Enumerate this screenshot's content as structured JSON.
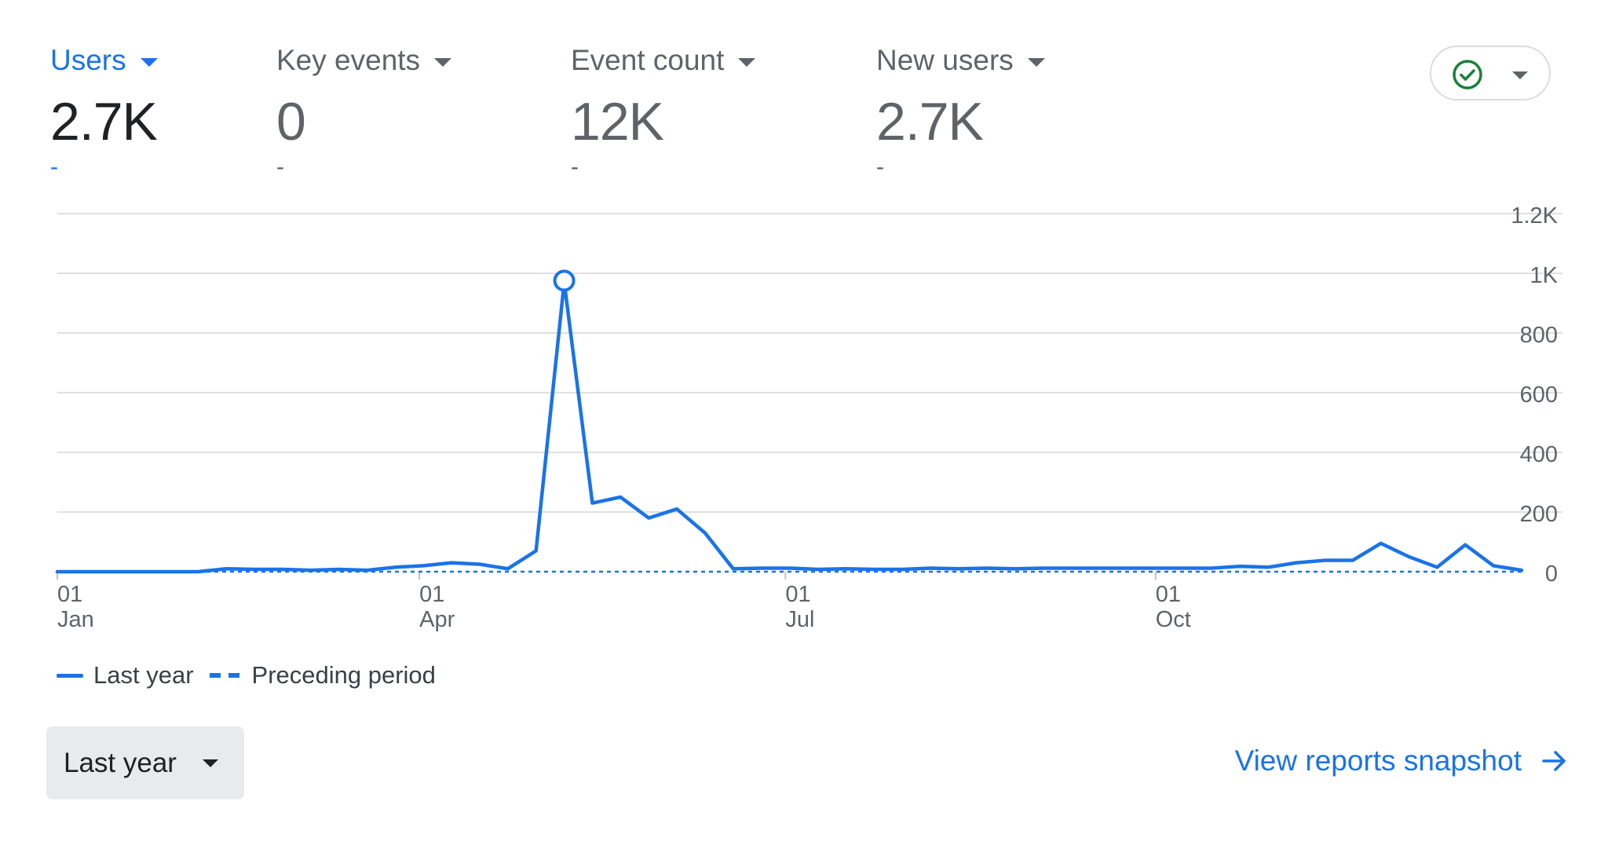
{
  "metrics": [
    {
      "label": "Users",
      "value": "2.7K",
      "delta": "-",
      "active": true
    },
    {
      "label": "Key events",
      "value": "0",
      "delta": "-",
      "active": false
    },
    {
      "label": "Event count",
      "value": "12K",
      "delta": "-",
      "active": false
    },
    {
      "label": "New users",
      "value": "2.7K",
      "delta": "-",
      "active": false
    }
  ],
  "status_button": {
    "icon": "check-circle-icon",
    "icon_color": "#188038",
    "caret": "chevron-down-icon"
  },
  "colors": {
    "accent": "#1a73e8",
    "text": "#3c4043",
    "muted": "#5f6368",
    "grid": "#e0e0e0"
  },
  "chart_data": {
    "type": "line",
    "x_tick_labels": [
      {
        "day": "01",
        "month": "Jan"
      },
      {
        "day": "01",
        "month": "Apr"
      },
      {
        "day": "01",
        "month": "Jul"
      },
      {
        "day": "01",
        "month": "Oct"
      }
    ],
    "y_tick_labels": [
      "0",
      "200",
      "400",
      "600",
      "800",
      "1K",
      "1.2K"
    ],
    "ylim": [
      0,
      1200
    ],
    "y_ticks": [
      0,
      200,
      400,
      600,
      800,
      1000,
      1200
    ],
    "xlim": [
      0,
      364
    ],
    "x_tick_days": [
      0,
      90,
      181,
      273
    ],
    "series": [
      {
        "name": "Last year",
        "style": "solid",
        "x": [
          0,
          7,
          14,
          21,
          28,
          35,
          42,
          49,
          56,
          63,
          70,
          77,
          84,
          91,
          98,
          105,
          112,
          119,
          126,
          133,
          140,
          147,
          154,
          161,
          168,
          175,
          182,
          189,
          196,
          203,
          210,
          217,
          224,
          231,
          238,
          245,
          252,
          259,
          266,
          273,
          280,
          287,
          294,
          301,
          308,
          315,
          322,
          329,
          336,
          343,
          350,
          357,
          364
        ],
        "y": [
          0,
          0,
          0,
          0,
          0,
          0,
          10,
          8,
          8,
          5,
          8,
          5,
          15,
          20,
          30,
          25,
          10,
          70,
          970,
          230,
          250,
          180,
          210,
          130,
          10,
          12,
          12,
          8,
          10,
          8,
          8,
          12,
          10,
          12,
          10,
          12,
          12,
          12,
          12,
          12,
          12,
          12,
          18,
          15,
          30,
          38,
          38,
          95,
          50,
          15,
          90,
          20,
          5
        ]
      },
      {
        "name": "Preceding period",
        "style": "dashed",
        "x": [
          0,
          364
        ],
        "y": [
          0,
          0
        ]
      }
    ],
    "highlight_point": {
      "x": 126,
      "y": 970
    },
    "grid": true,
    "legend_position": "bottom-left"
  },
  "legend": {
    "last_year": "Last year",
    "preceding": "Preceding period"
  },
  "range_selector": {
    "label": "Last year"
  },
  "snapshot_link": {
    "label": "View reports snapshot"
  }
}
